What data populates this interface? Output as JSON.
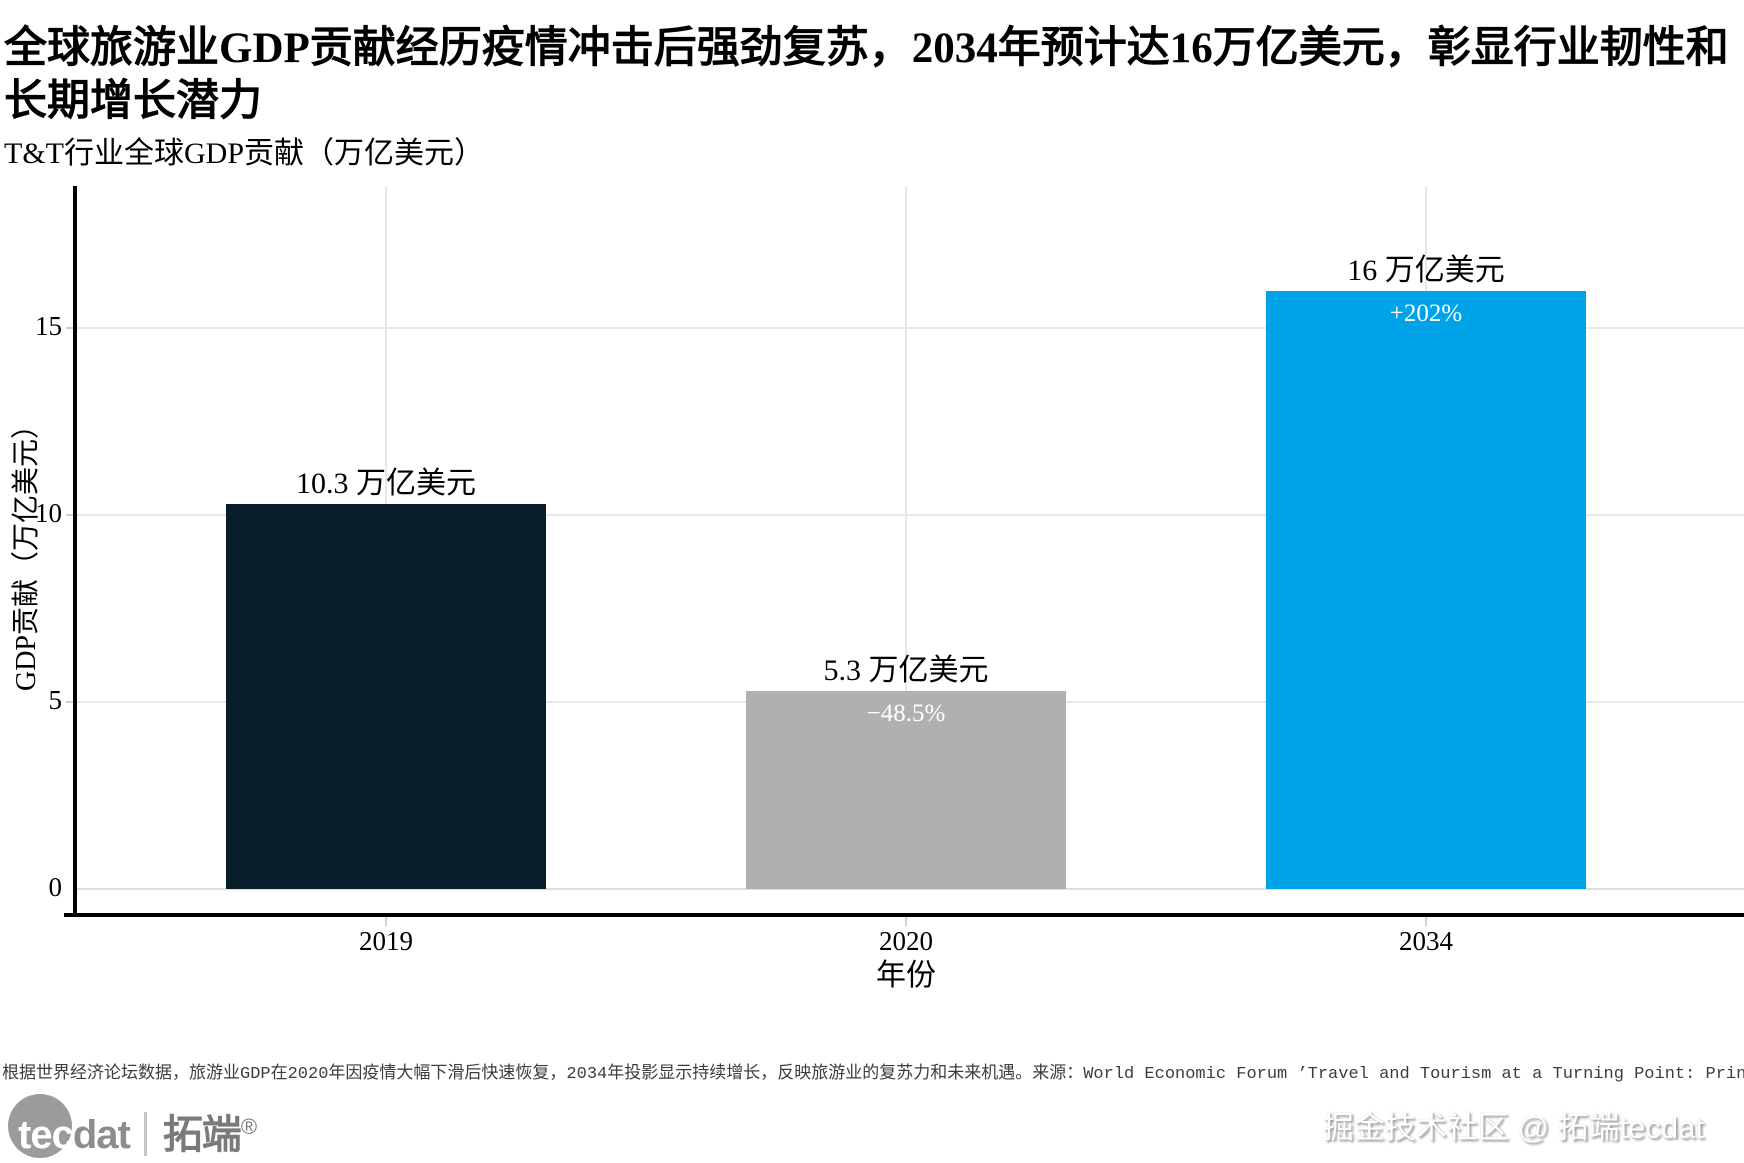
{
  "title": "全球旅游业GDP贡献经历疫情冲击后强劲复苏，2034年预计达16万亿美元，彰显行业韧性和长期增长潜力",
  "subtitle": "T&T行业全球GDP贡献（万亿美元）",
  "chart_data": {
    "type": "bar",
    "categories": [
      "2019",
      "2020",
      "2034"
    ],
    "values": [
      10.3,
      5.3,
      16
    ],
    "bar_labels": [
      "10.3 万亿美元",
      "5.3 万亿美元",
      "16 万亿美元"
    ],
    "inner_labels": [
      "",
      "−48.5%",
      "+202%"
    ],
    "bar_colors": [
      "#081c2a",
      "#b0b0b0",
      "#00a2e8"
    ],
    "title": "T&T行业全球GDP贡献（万亿美元）",
    "xlabel": "年份",
    "ylabel": "GDP贡献（万亿美元）",
    "ylim": [
      0,
      18.8
    ],
    "yticks": [
      0,
      5,
      10,
      15
    ],
    "grid": true,
    "legend": "none"
  },
  "footer": {
    "note": "根据世界经济论坛数据，旅游业GDP在2020年因疫情大幅下滑后快速恢复，2034年投影显示持续增长，反映旅游业的复苏力和未来机遇。来源：World Economic Forum ’Travel and Tourism at a Turning Point: Principles for Transformative G"
  },
  "branding": {
    "logo_tec": "tec",
    "logo_dat": "dat",
    "logo_cn": "拓端",
    "logo_reg": "®",
    "watermark": "掘金技术社区 @ 拓端tecdat"
  },
  "colors": {
    "bar_2019": "#081c2a",
    "bar_2020": "#b0b0b0",
    "bar_2034": "#00a2e8",
    "gridline": "#e7e7e7",
    "axis": "#000000",
    "inner_label_text": "#ffffff"
  }
}
